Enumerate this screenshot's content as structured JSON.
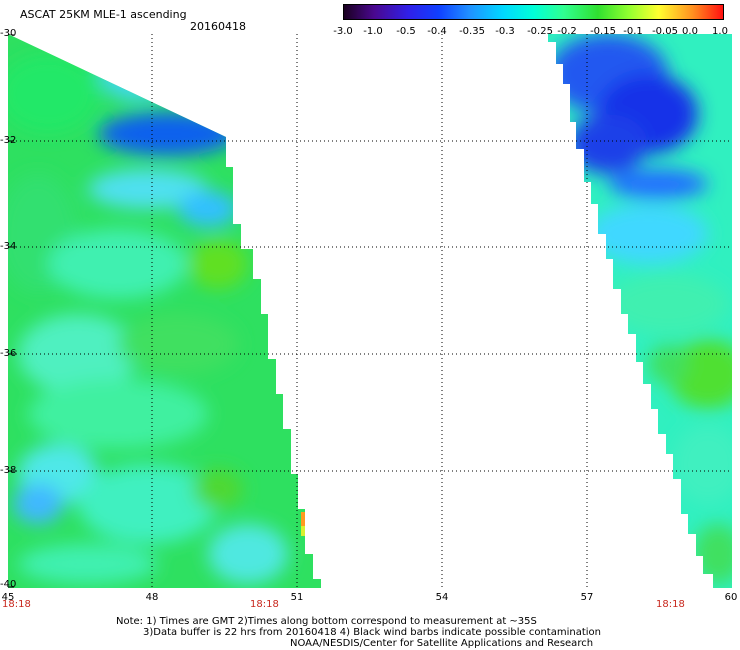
{
  "header": {
    "title": "ASCAT 25KM MLE-1 ascending",
    "date": "20160418"
  },
  "colorbar": {
    "labels": [
      "-3.0",
      "-1.0",
      "-0.5",
      "-0.4",
      "-0.35",
      "-0.3",
      "-0.25",
      "-0.2",
      "-0.15",
      "-0.1",
      "-0.05",
      "0.0",
      "1.0"
    ],
    "colors": [
      "#2a0030",
      "#4a10a0",
      "#2020ff",
      "#1050e0",
      "#2090ff",
      "#00d0ff",
      "#00ffe0",
      "#40ff90",
      "#30e030",
      "#a0ff30",
      "#ffff40",
      "#ff9020",
      "#ff2010"
    ]
  },
  "axes": {
    "y_labels": [
      "-30",
      "-32",
      "-34",
      "-36",
      "-38",
      "-40"
    ],
    "x_labels": [
      "45",
      "48",
      "51",
      "54",
      "57",
      "60"
    ]
  },
  "times": {
    "left": "18:18",
    "middle": "18:18",
    "right": "18:18"
  },
  "notes": {
    "line1": "Note: 1) Times are GMT 2)Times along bottom correspond to measurement at ~35S",
    "line2": "3)Data buffer is 22 hrs from 20160418 4) Black wind barbs indicate possible contamination",
    "line3": "NOAA/NESDIS/Center for Satellite Applications and Research"
  }
}
